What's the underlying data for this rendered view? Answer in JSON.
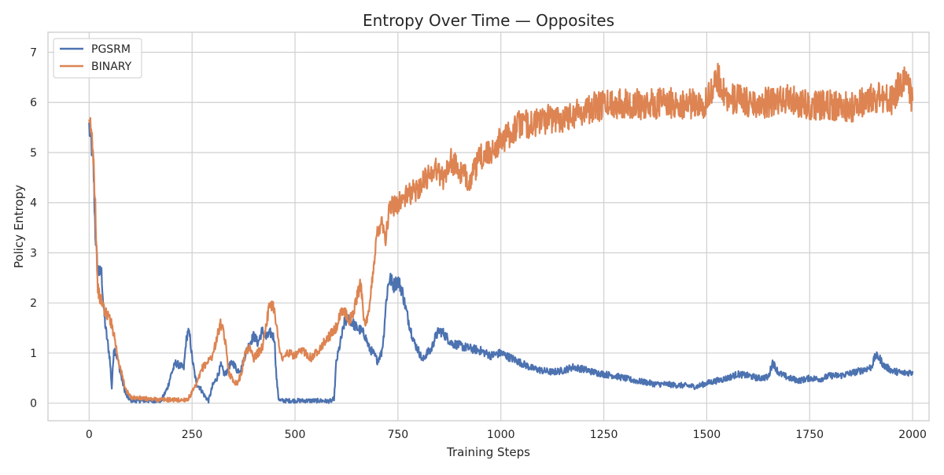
{
  "chart_data": {
    "type": "line",
    "title": "Entropy Over Time — Opposites",
    "xlabel": "Training Steps",
    "ylabel": "Policy Entropy",
    "xlim": [
      -100,
      2040
    ],
    "ylim": [
      -0.35,
      7.4
    ],
    "xticks": [
      0,
      250,
      500,
      750,
      1000,
      1250,
      1500,
      1750,
      2000
    ],
    "yticks": [
      0,
      1,
      2,
      3,
      4,
      5,
      6,
      7
    ],
    "grid": true,
    "legend_position": "top-left",
    "series": [
      {
        "name": "PGSRM",
        "color": "#4c72b0",
        "x": [
          0,
          5,
          10,
          15,
          20,
          25,
          30,
          35,
          40,
          45,
          50,
          55,
          60,
          65,
          70,
          80,
          90,
          100,
          110,
          120,
          150,
          175,
          190,
          200,
          210,
          220,
          230,
          235,
          240,
          245,
          250,
          260,
          270,
          280,
          290,
          300,
          310,
          320,
          330,
          340,
          350,
          360,
          370,
          380,
          390,
          400,
          410,
          420,
          430,
          440,
          450,
          455,
          460,
          465,
          470,
          480,
          500,
          520,
          540,
          560,
          580,
          590,
          595,
          600,
          610,
          620,
          630,
          640,
          650,
          660,
          670,
          680,
          690,
          700,
          710,
          715,
          720,
          725,
          730,
          740,
          750,
          760,
          770,
          780,
          790,
          800,
          810,
          820,
          830,
          840,
          850,
          860,
          870,
          880,
          900,
          920,
          950,
          975,
          1000,
          1025,
          1050,
          1075,
          1100,
          1125,
          1150,
          1175,
          1200,
          1225,
          1250,
          1275,
          1300,
          1325,
          1350,
          1375,
          1400,
          1425,
          1450,
          1475,
          1500,
          1525,
          1550,
          1575,
          1600,
          1625,
          1650,
          1660,
          1675,
          1700,
          1725,
          1750,
          1775,
          1800,
          1825,
          1850,
          1875,
          1900,
          1910,
          1920,
          1930,
          1950,
          1975,
          2000
        ],
        "y": [
          5.5,
          5.2,
          4.8,
          3.4,
          2.7,
          2.6,
          2.6,
          1.9,
          1.5,
          1.2,
          0.9,
          0.3,
          1.1,
          1.0,
          0.85,
          0.45,
          0.15,
          0.06,
          0.05,
          0.05,
          0.05,
          0.05,
          0.3,
          0.6,
          0.8,
          0.75,
          0.7,
          1.2,
          1.45,
          1.3,
          0.9,
          0.4,
          0.3,
          0.15,
          0.05,
          0.35,
          0.5,
          0.75,
          0.55,
          0.75,
          0.8,
          0.65,
          0.7,
          1.0,
          1.2,
          1.35,
          1.2,
          1.45,
          1.3,
          1.4,
          1.3,
          0.5,
          0.1,
          0.05,
          0.05,
          0.05,
          0.05,
          0.05,
          0.05,
          0.05,
          0.04,
          0.05,
          0.1,
          0.8,
          1.2,
          1.6,
          1.7,
          1.6,
          1.5,
          1.45,
          1.35,
          1.1,
          1.0,
          0.85,
          1.0,
          1.3,
          1.9,
          2.3,
          2.5,
          2.35,
          2.45,
          2.25,
          1.85,
          1.5,
          1.2,
          1.05,
          0.85,
          1.0,
          1.05,
          1.3,
          1.45,
          1.4,
          1.3,
          1.2,
          1.15,
          1.1,
          1.05,
          0.95,
          1.0,
          0.9,
          0.8,
          0.7,
          0.65,
          0.62,
          0.65,
          0.72,
          0.68,
          0.62,
          0.58,
          0.55,
          0.5,
          0.45,
          0.42,
          0.38,
          0.38,
          0.36,
          0.35,
          0.33,
          0.4,
          0.45,
          0.5,
          0.58,
          0.55,
          0.5,
          0.52,
          0.82,
          0.6,
          0.5,
          0.45,
          0.5,
          0.48,
          0.55,
          0.55,
          0.6,
          0.65,
          0.72,
          0.95,
          0.9,
          0.75,
          0.65,
          0.6,
          0.62
        ]
      },
      {
        "name": "BINARY",
        "color": "#dd8452",
        "x": [
          0,
          3,
          6,
          10,
          15,
          20,
          25,
          30,
          40,
          50,
          60,
          70,
          80,
          90,
          100,
          120,
          150,
          180,
          200,
          220,
          240,
          260,
          275,
          290,
          300,
          310,
          320,
          330,
          340,
          350,
          360,
          370,
          380,
          390,
          400,
          410,
          420,
          430,
          440,
          450,
          460,
          470,
          480,
          500,
          520,
          540,
          560,
          580,
          600,
          610,
          620,
          630,
          640,
          650,
          660,
          670,
          680,
          690,
          700,
          710,
          720,
          730,
          750,
          775,
          800,
          820,
          840,
          860,
          880,
          900,
          925,
          950,
          975,
          1000,
          1025,
          1050,
          1075,
          1100,
          1150,
          1200,
          1250,
          1300,
          1350,
          1400,
          1450,
          1500,
          1525,
          1550,
          1575,
          1600,
          1650,
          1700,
          1750,
          1800,
          1850,
          1900,
          1950,
          1975,
          2000
        ],
        "y": [
          5.4,
          5.55,
          5.35,
          5.0,
          4.0,
          2.4,
          2.1,
          2.05,
          1.8,
          1.7,
          1.4,
          0.9,
          0.55,
          0.25,
          0.12,
          0.1,
          0.08,
          0.07,
          0.07,
          0.06,
          0.08,
          0.35,
          0.7,
          0.85,
          0.95,
          1.3,
          1.6,
          1.25,
          0.6,
          0.45,
          0.4,
          0.6,
          1.05,
          1.1,
          0.9,
          1.0,
          1.1,
          1.6,
          2.0,
          1.9,
          1.2,
          0.85,
          1.0,
          0.95,
          1.05,
          0.9,
          1.1,
          1.3,
          1.5,
          1.75,
          1.85,
          1.65,
          1.75,
          2.1,
          2.4,
          1.5,
          1.8,
          2.7,
          3.4,
          3.7,
          3.3,
          3.9,
          4.0,
          4.15,
          4.3,
          4.5,
          4.7,
          4.5,
          4.85,
          4.6,
          4.45,
          4.9,
          5.0,
          5.25,
          5.4,
          5.6,
          5.55,
          5.65,
          5.7,
          5.85,
          5.95,
          6.0,
          5.95,
          6.0,
          5.95,
          6.0,
          6.5,
          6.1,
          6.05,
          6.0,
          6.0,
          6.05,
          5.95,
          5.95,
          5.9,
          6.1,
          6.05,
          6.45,
          6.1
        ]
      }
    ]
  }
}
